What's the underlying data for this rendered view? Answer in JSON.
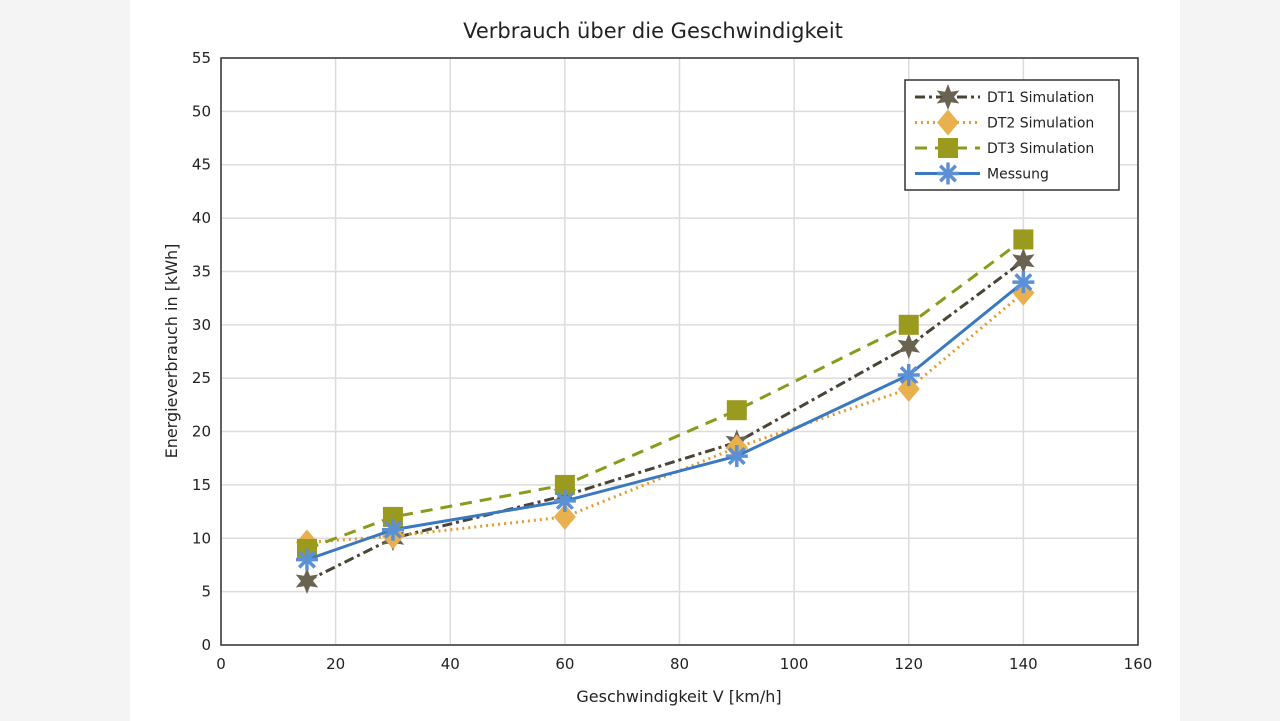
{
  "chart_data": {
    "type": "line",
    "title": "Verbrauch über die Geschwindigkeit",
    "xlabel": "Geschwindigkeit V [km/h]",
    "ylabel": "Energieverbrauch in [kWh]",
    "xlim": [
      0,
      160
    ],
    "ylim": [
      0,
      55
    ],
    "xticks": [
      0,
      20,
      40,
      60,
      80,
      100,
      120,
      140,
      160
    ],
    "yticks": [
      0,
      5,
      10,
      15,
      20,
      25,
      30,
      35,
      40,
      45,
      50,
      55
    ],
    "grid": true,
    "legend_position": "top-right",
    "x": [
      15,
      30,
      60,
      90,
      120,
      140
    ],
    "series": [
      {
        "name": "DT1 Simulation",
        "values": [
          6,
          10,
          14,
          19,
          28,
          36
        ],
        "color": "#4a4437",
        "marker_color": "#6b6352",
        "marker": "hexagram",
        "dash": "dashdot"
      },
      {
        "name": "DT2 Simulation",
        "values": [
          9.6,
          10.2,
          12,
          18.5,
          24,
          33
        ],
        "color": "#e39a2e",
        "marker_color": "#e8b04e",
        "marker": "diamond",
        "dash": "dotted"
      },
      {
        "name": "DT3 Simulation",
        "values": [
          9,
          12,
          15,
          22,
          30,
          38
        ],
        "color": "#8a9a1c",
        "marker_color": "#9a9a1e",
        "marker": "square",
        "dash": "dashed"
      },
      {
        "name": "Messung",
        "values": [
          8,
          10.8,
          13.5,
          17.7,
          25.3,
          34
        ],
        "color": "#3a78c0",
        "marker_color": "#5b90d4",
        "marker": "asterisk",
        "dash": "solid"
      }
    ]
  }
}
